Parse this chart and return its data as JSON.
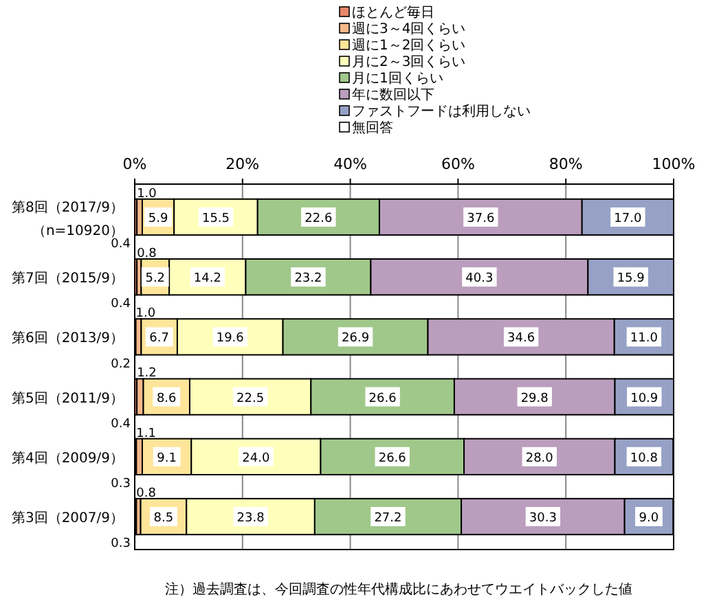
{
  "chart_data": {
    "type": "bar",
    "orientation": "horizontal",
    "stacked": true,
    "grid": "x",
    "legend": "top",
    "categories": [
      "第8回（2017/9）（n=10920）",
      "第7回（2015/9）",
      "第6回（2013/9）",
      "第5回（2011/9）",
      "第4回（2009/9）",
      "第3回（2007/9）"
    ],
    "series": [
      {
        "name": "ほとんど毎日",
        "color": "#e8876a",
        "values": [
          0.4,
          0.4,
          0.2,
          0.4,
          0.3,
          0.3
        ],
        "value_labels": [
          "0.4",
          "0.4",
          "0.2",
          "0.4",
          "0.3",
          "0.3"
        ]
      },
      {
        "name": "週に3～4回くらい",
        "color": "#f6b88a",
        "values": [
          1.0,
          0.8,
          1.0,
          1.2,
          1.1,
          0.8
        ],
        "value_labels": [
          "1.0",
          "0.8",
          "1.0",
          "1.2",
          "1.1",
          "0.8"
        ]
      },
      {
        "name": "週に1～2回くらい",
        "color": "#ffe599",
        "values": [
          5.9,
          5.2,
          6.7,
          8.6,
          9.1,
          8.5
        ],
        "value_labels": [
          "5.9",
          "5.2",
          "6.7",
          "8.6",
          "9.1",
          "8.5"
        ]
      },
      {
        "name": "月に2～3回くらい",
        "color": "#ffffbb",
        "values": [
          15.5,
          14.2,
          19.6,
          22.5,
          24.0,
          23.8
        ],
        "value_labels": [
          "15.5",
          "14.2",
          "19.6",
          "22.5",
          "24.0",
          "23.8"
        ]
      },
      {
        "name": "月に1回くらい",
        "color": "#a0c88a",
        "values": [
          22.6,
          23.2,
          26.9,
          26.6,
          26.6,
          27.2
        ],
        "value_labels": [
          "22.6",
          "23.2",
          "26.9",
          "26.6",
          "26.6",
          "27.2"
        ]
      },
      {
        "name": "年に数回以下",
        "color": "#bb9dbd",
        "values": [
          37.6,
          40.3,
          34.6,
          29.8,
          28.0,
          30.3
        ],
        "value_labels": [
          "37.6",
          "40.3",
          "34.6",
          "29.8",
          "28.0",
          "30.3"
        ]
      },
      {
        "name": "ファストフードは利用しない",
        "color": "#97a1c6",
        "values": [
          17.0,
          15.9,
          11.0,
          10.9,
          10.8,
          9.0
        ],
        "value_labels": [
          "17.0",
          "15.9",
          "11.0",
          "10.9",
          "10.8",
          "9.0"
        ]
      },
      {
        "name": "無回答",
        "color": "#ffffff",
        "values": [
          null,
          null,
          null,
          null,
          null,
          null
        ]
      }
    ],
    "xlim": [
      0,
      100
    ],
    "xticks": [
      {
        "value": 0,
        "label": "0%"
      },
      {
        "value": 20,
        "label": "20%"
      },
      {
        "value": 40,
        "label": "40%"
      },
      {
        "value": 60,
        "label": "60%"
      },
      {
        "value": 80,
        "label": "80%"
      },
      {
        "value": 100,
        "label": "100%"
      }
    ],
    "annotations": [
      "注）過去調査は、今回調査の性年代構成比にあわせてウエイトバックした値"
    ]
  }
}
